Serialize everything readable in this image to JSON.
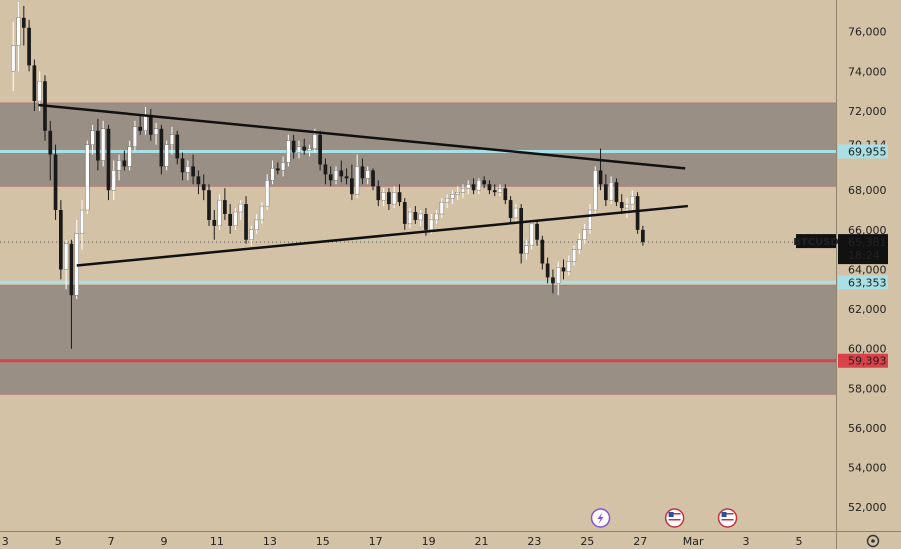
{
  "chart_data": {
    "type": "candlestick",
    "symbol": "BTCUSD",
    "last_price": "65,381",
    "countdown": "18:24",
    "ylim": [
      50800,
      77600
    ],
    "y_ticks": [
      "76,000",
      "74,000",
      "72,000",
      "70,000",
      "68,000",
      "66,000",
      "64,000",
      "62,000",
      "60,000",
      "58,000",
      "56,000",
      "54,000",
      "52,000"
    ],
    "y_tick_values": [
      76000,
      74000,
      72000,
      70000,
      68000,
      66000,
      64000,
      62000,
      60000,
      58000,
      56000,
      54000,
      52000
    ],
    "x_ticks": [
      "3",
      "5",
      "7",
      "9",
      "11",
      "13",
      "15",
      "17",
      "19",
      "21",
      "23",
      "25",
      "27",
      "Mar",
      "3",
      "5"
    ],
    "x_tick_values": [
      3,
      5,
      7,
      9,
      11,
      13,
      15,
      17,
      19,
      21,
      23,
      25,
      27,
      29,
      31,
      33
    ],
    "xlim": [
      2.8,
      34.4
    ],
    "zones": [
      {
        "name": "upper-supply-zone",
        "y1": 68200,
        "y2": 72400
      },
      {
        "name": "lower-demand-zone",
        "y1": 57700,
        "y2": 63200
      }
    ],
    "horizontal_lines": [
      {
        "name": "resistance-line",
        "value": 69955,
        "label": "69,955",
        "color": "#a8e0e6"
      },
      {
        "name": "support-line",
        "value": 63353,
        "label": "63,353",
        "color": "#a8e0e6"
      },
      {
        "name": "stop-line",
        "value": 59393,
        "label": "59,393",
        "color": "#d8424a"
      }
    ],
    "price_labels": [
      {
        "name": "high-label",
        "value": 70300,
        "label": "70,114"
      }
    ],
    "trendlines": [
      {
        "name": "descending-trendline",
        "x1": 4.25,
        "y1": 72300,
        "x2": 28.7,
        "y2": 69100
      },
      {
        "name": "ascending-trendline",
        "x1": 5.7,
        "y1": 64200,
        "x2": 28.8,
        "y2": 67200
      }
    ],
    "candles": [
      [
        3.3,
        74000,
        76500,
        73000,
        75300
      ],
      [
        3.5,
        75300,
        77500,
        74000,
        76700
      ],
      [
        3.7,
        76700,
        77300,
        75300,
        76200
      ],
      [
        3.9,
        76200,
        76600,
        74000,
        74300
      ],
      [
        4.1,
        74300,
        74600,
        72000,
        72500
      ],
      [
        4.3,
        72500,
        74000,
        72000,
        73500
      ],
      [
        4.5,
        73500,
        73800,
        70500,
        71000
      ],
      [
        4.7,
        71000,
        71500,
        68500,
        69800
      ],
      [
        4.9,
        69800,
        70300,
        66500,
        67000
      ],
      [
        5.1,
        67000,
        67500,
        63500,
        64000
      ],
      [
        5.3,
        64000,
        65500,
        63000,
        65300
      ],
      [
        5.5,
        65300,
        65500,
        60000,
        62700
      ],
      [
        5.7,
        62700,
        66500,
        62500,
        65800
      ],
      [
        5.9,
        65800,
        67500,
        65000,
        67000
      ],
      [
        6.1,
        67000,
        70500,
        66800,
        70300
      ],
      [
        6.3,
        70300,
        71300,
        69800,
        71000
      ],
      [
        6.5,
        71000,
        71600,
        69000,
        69500
      ],
      [
        6.7,
        69500,
        71500,
        69200,
        71100
      ],
      [
        6.9,
        71100,
        71300,
        67500,
        68000
      ],
      [
        7.1,
        68000,
        69500,
        67500,
        69000
      ],
      [
        7.3,
        69000,
        69800,
        68500,
        69500
      ],
      [
        7.5,
        69500,
        70000,
        69000,
        69200
      ],
      [
        7.7,
        69200,
        70500,
        69000,
        70200
      ],
      [
        7.9,
        70200,
        71500,
        70000,
        71200
      ],
      [
        8.1,
        71200,
        71800,
        70800,
        71000
      ],
      [
        8.3,
        71000,
        72200,
        70800,
        71800
      ],
      [
        8.5,
        71800,
        72100,
        70500,
        70800
      ],
      [
        8.7,
        70800,
        71400,
        70300,
        71100
      ],
      [
        8.9,
        71100,
        71300,
        68800,
        69200
      ],
      [
        9.1,
        69200,
        70500,
        69000,
        70300
      ],
      [
        9.3,
        70300,
        71200,
        69800,
        70800
      ],
      [
        9.5,
        70800,
        71000,
        69300,
        69600
      ],
      [
        9.7,
        69600,
        69900,
        68500,
        68900
      ],
      [
        9.9,
        68900,
        69500,
        68500,
        69200
      ],
      [
        10.1,
        69200,
        69800,
        68300,
        68700
      ],
      [
        10.3,
        68700,
        69000,
        67800,
        68300
      ],
      [
        10.5,
        68300,
        68800,
        67500,
        68000
      ],
      [
        10.7,
        68000,
        68300,
        66200,
        66500
      ],
      [
        10.9,
        66500,
        67000,
        65500,
        66200
      ],
      [
        11.1,
        66200,
        67800,
        66000,
        67500
      ],
      [
        11.3,
        67500,
        68100,
        66500,
        66800
      ],
      [
        11.5,
        66800,
        67300,
        65800,
        66200
      ],
      [
        11.7,
        66200,
        67100,
        66000,
        66900
      ],
      [
        11.9,
        66900,
        67500,
        66500,
        67300
      ],
      [
        12.1,
        67300,
        67700,
        65300,
        65500
      ],
      [
        12.3,
        65500,
        66200,
        65200,
        66000
      ],
      [
        12.5,
        66000,
        66800,
        65800,
        66500
      ],
      [
        12.7,
        66500,
        67400,
        66300,
        67200
      ],
      [
        12.9,
        67200,
        68800,
        67000,
        68500
      ],
      [
        13.1,
        68500,
        69500,
        68300,
        69100
      ],
      [
        13.3,
        69100,
        69400,
        68800,
        69000
      ],
      [
        13.5,
        69000,
        69700,
        68700,
        69400
      ],
      [
        13.7,
        69400,
        70800,
        69200,
        70500
      ],
      [
        13.9,
        70500,
        70800,
        69600,
        69900
      ],
      [
        14.1,
        69900,
        70500,
        69600,
        70200
      ],
      [
        14.3,
        70200,
        70600,
        69800,
        70000
      ],
      [
        14.5,
        70000,
        70300,
        69700,
        70100
      ],
      [
        14.7,
        70100,
        71100,
        69900,
        70800
      ],
      [
        14.9,
        70800,
        71000,
        69000,
        69300
      ],
      [
        15.1,
        69300,
        69600,
        68300,
        68800
      ],
      [
        15.3,
        68800,
        69200,
        68200,
        68500
      ],
      [
        15.5,
        68500,
        69200,
        68300,
        69000
      ],
      [
        15.7,
        69000,
        69500,
        68400,
        68700
      ],
      [
        15.9,
        68700,
        69100,
        68300,
        68600
      ],
      [
        16.1,
        68600,
        69300,
        67500,
        67800
      ],
      [
        16.3,
        67800,
        69800,
        67600,
        69200
      ],
      [
        16.5,
        69200,
        69600,
        68300,
        68600
      ],
      [
        16.7,
        68600,
        69200,
        68300,
        69000
      ],
      [
        16.9,
        69000,
        69100,
        68000,
        68200
      ],
      [
        17.1,
        68200,
        68500,
        67200,
        67500
      ],
      [
        17.3,
        67500,
        68100,
        67200,
        67900
      ],
      [
        17.5,
        67900,
        68100,
        67000,
        67300
      ],
      [
        17.7,
        67300,
        68200,
        67100,
        67900
      ],
      [
        17.9,
        67900,
        68300,
        67200,
        67400
      ],
      [
        18.1,
        67400,
        67600,
        66000,
        66300
      ],
      [
        18.3,
        66300,
        67100,
        66100,
        66900
      ],
      [
        18.5,
        66900,
        67200,
        66300,
        66500
      ],
      [
        18.7,
        66500,
        67000,
        66200,
        66800
      ],
      [
        18.9,
        66800,
        67100,
        65700,
        66000
      ],
      [
        19.1,
        66000,
        66800,
        65800,
        66500
      ],
      [
        19.3,
        66500,
        67000,
        66300,
        66800
      ],
      [
        19.5,
        66800,
        67600,
        66600,
        67400
      ],
      [
        19.7,
        67400,
        67800,
        67100,
        67600
      ],
      [
        19.9,
        67600,
        68000,
        67300,
        67800
      ],
      [
        20.1,
        67800,
        68200,
        67500,
        67900
      ],
      [
        20.3,
        67900,
        68300,
        67600,
        68100
      ],
      [
        20.5,
        68100,
        68500,
        67800,
        68300
      ],
      [
        20.7,
        68300,
        68600,
        67800,
        68000
      ],
      [
        20.9,
        68000,
        68600,
        67800,
        68500
      ],
      [
        21.1,
        68500,
        68700,
        68100,
        68300
      ],
      [
        21.3,
        68300,
        68500,
        67800,
        68000
      ],
      [
        21.5,
        68000,
        68300,
        67700,
        67900
      ],
      [
        21.7,
        67900,
        68300,
        67700,
        68100
      ],
      [
        21.9,
        68100,
        68300,
        67300,
        67500
      ],
      [
        22.1,
        67500,
        67700,
        66300,
        66600
      ],
      [
        22.3,
        66600,
        67300,
        66400,
        67100
      ],
      [
        22.5,
        67100,
        67300,
        64300,
        64800
      ],
      [
        22.7,
        64800,
        65500,
        64500,
        65200
      ],
      [
        22.9,
        65200,
        66500,
        65000,
        66300
      ],
      [
        23.1,
        66300,
        66500,
        65200,
        65500
      ],
      [
        23.3,
        65500,
        65700,
        64000,
        64300
      ],
      [
        23.5,
        64300,
        64600,
        63300,
        63600
      ],
      [
        23.7,
        63600,
        64000,
        62800,
        63300
      ],
      [
        23.9,
        63300,
        64400,
        62700,
        64100
      ],
      [
        24.1,
        64100,
        64500,
        63500,
        63900
      ],
      [
        24.3,
        63900,
        64700,
        63700,
        64400
      ],
      [
        24.5,
        64400,
        65200,
        64200,
        65000
      ],
      [
        24.7,
        65000,
        65800,
        64800,
        65500
      ],
      [
        24.9,
        65500,
        66300,
        65300,
        66000
      ],
      [
        25.1,
        66000,
        67300,
        65800,
        67000
      ],
      [
        25.3,
        67000,
        69200,
        66800,
        69000
      ],
      [
        25.5,
        69000,
        70100,
        68000,
        68300
      ],
      [
        25.7,
        68300,
        68800,
        67200,
        67500
      ],
      [
        25.9,
        67500,
        68700,
        67300,
        68400
      ],
      [
        26.1,
        68400,
        68600,
        67200,
        67400
      ],
      [
        26.3,
        67400,
        67800,
        66800,
        67100
      ],
      [
        26.5,
        67100,
        67600,
        66600,
        67300
      ],
      [
        26.7,
        67300,
        68000,
        67000,
        67700
      ],
      [
        26.9,
        67700,
        67900,
        65800,
        66000
      ],
      [
        27.1,
        66000,
        66200,
        65200,
        65381
      ]
    ]
  },
  "event_icons": [
    {
      "name": "lightning-event-icon",
      "x": 25.5,
      "color": "#8a4fd8"
    },
    {
      "name": "us-flag-event-icon",
      "x": 28.3,
      "color": "#c0323c"
    },
    {
      "name": "us-flag-event-icon",
      "x": 30.3,
      "color": "#c0323c"
    }
  ],
  "colors": {
    "background": "#d4c2a6",
    "zone": "#9a8f85",
    "candle_up": "#ffffff",
    "candle_down": "#1a1a1a",
    "trendline": "#111111",
    "axis_text": "#222222",
    "tag_dark": "#111111"
  },
  "settings_icon": "gear-icon"
}
